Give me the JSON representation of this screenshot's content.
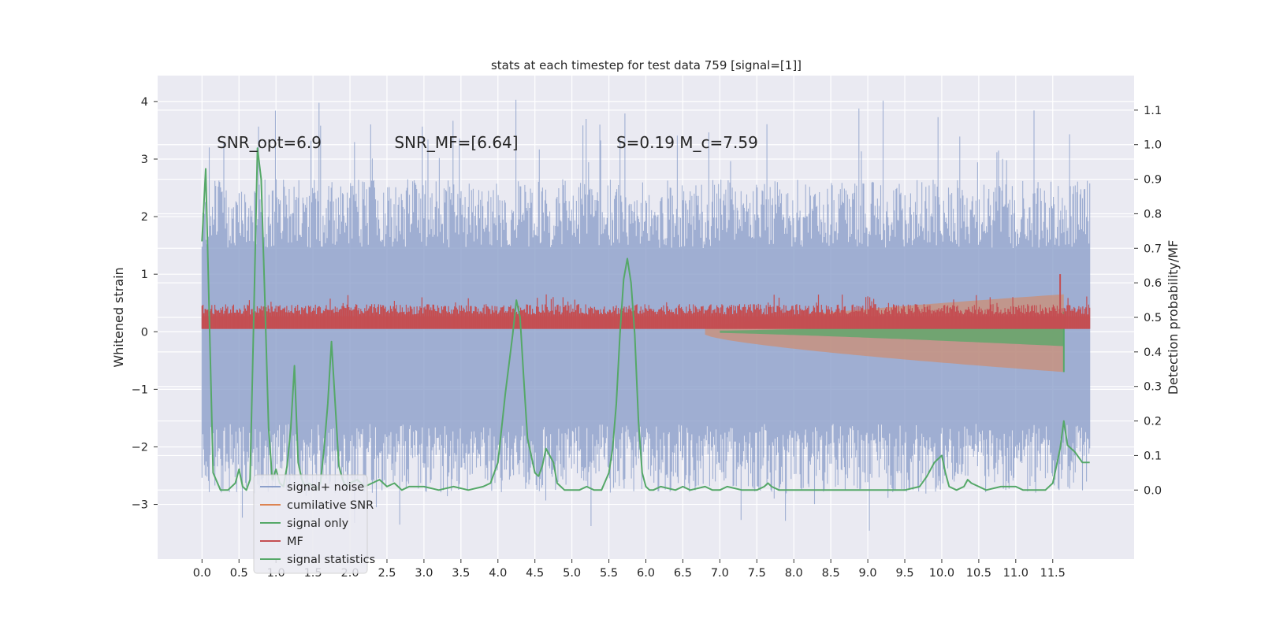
{
  "chart_data": {
    "type": "line",
    "title": "stats at each timestep for test data 759 [signal=[1]]",
    "xlabel": "",
    "ylabel": "Whitened strain",
    "y2label": "Detection probability/MF",
    "xlim": [
      -0.6,
      12.6
    ],
    "ylim": [
      -3.95,
      4.45
    ],
    "y2lim": [
      -0.2,
      1.2
    ],
    "x_ticks": [
      "0.0",
      "0.5",
      "1.0",
      "1.5",
      "2.0",
      "2.5",
      "3.0",
      "3.5",
      "4.0",
      "4.5",
      "5.0",
      "5.5",
      "6.0",
      "6.5",
      "7.0",
      "7.5",
      "8.0",
      "8.5",
      "9.0",
      "9.5",
      "10.0",
      "10.5",
      "11.0",
      "11.5"
    ],
    "y_ticks": [
      "4",
      "3",
      "2",
      "1",
      "0",
      "−1",
      "−2",
      "−3"
    ],
    "y2_ticks": [
      "1.1",
      "1.0",
      "0.9",
      "0.8",
      "0.7",
      "0.6",
      "0.5",
      "0.4",
      "0.3",
      "0.2",
      "0.1",
      "0.0"
    ],
    "grid": true,
    "legend_position": "lower-left",
    "annotations": [
      {
        "text": "SNR_opt=6.9",
        "x": 0.2,
        "y": 3.3
      },
      {
        "text": "SNR_MF=[6.64]",
        "x": 2.6,
        "y": 3.3
      },
      {
        "text": "S=0.19   M_c=7.59",
        "x": 5.6,
        "y": 3.3
      }
    ],
    "series": [
      {
        "name": "signal+ noise",
        "color": "#8da0cb",
        "axis": "left",
        "envelope": {
          "x_start": 0.0,
          "x_end": 12.0,
          "lo": -1.6,
          "hi": 1.45,
          "spike_hi": 4.1,
          "spike_lo": -3.5
        }
      },
      {
        "name": "cumilative SNR",
        "color": "#dd8452",
        "axis": "left",
        "shape": {
          "x_start": 6.8,
          "x_end": 11.65,
          "top_end": 0.65,
          "bottom_end": -0.7
        }
      },
      {
        "name": "signal only",
        "color": "#55a868",
        "axis": "left",
        "shape": {
          "x_start": 7.0,
          "x_end": 11.65,
          "top_end": 0.18,
          "bottom_end": -0.25
        }
      },
      {
        "name": "MF",
        "color": "#c44e52",
        "axis": "left",
        "band": {
          "x_start": 0.0,
          "x_end": 12.0,
          "lo": 0.05,
          "hi": 0.35,
          "peak_x": 11.6,
          "peak_y": 1.0
        }
      },
      {
        "name": "signal statistics",
        "color": "#55a868",
        "axis": "right",
        "x": [
          0.0,
          0.05,
          0.15,
          0.25,
          0.35,
          0.45,
          0.5,
          0.55,
          0.6,
          0.65,
          0.7,
          0.75,
          0.8,
          0.85,
          0.9,
          0.95,
          1.0,
          1.05,
          1.1,
          1.15,
          1.2,
          1.25,
          1.3,
          1.35,
          1.4,
          1.45,
          1.5,
          1.55,
          1.6,
          1.65,
          1.7,
          1.75,
          1.8,
          1.85,
          1.9,
          1.95,
          2.0,
          2.1,
          2.2,
          2.3,
          2.4,
          2.5,
          2.6,
          2.7,
          2.8,
          3.0,
          3.2,
          3.4,
          3.6,
          3.8,
          3.9,
          4.0,
          4.1,
          4.2,
          4.25,
          4.3,
          4.35,
          4.4,
          4.5,
          4.55,
          4.6,
          4.65,
          4.7,
          4.75,
          4.8,
          4.85,
          4.9,
          5.0,
          5.1,
          5.2,
          5.3,
          5.4,
          5.5,
          5.55,
          5.6,
          5.65,
          5.7,
          5.75,
          5.8,
          5.85,
          5.9,
          5.95,
          6.0,
          6.05,
          6.1,
          6.2,
          6.4,
          6.5,
          6.6,
          6.8,
          6.9,
          7.0,
          7.1,
          7.3,
          7.5,
          7.6,
          7.65,
          7.7,
          7.8,
          8.0,
          8.5,
          9.0,
          9.5,
          9.7,
          9.8,
          9.9,
          10.0,
          10.05,
          10.1,
          10.2,
          10.3,
          10.35,
          10.4,
          10.5,
          10.6,
          10.8,
          11.0,
          11.1,
          11.3,
          11.4,
          11.5,
          11.6,
          11.65,
          11.7,
          11.8,
          11.9,
          12.0
        ],
        "values": [
          0.72,
          0.93,
          0.05,
          0.0,
          0.0,
          0.02,
          0.06,
          0.01,
          0.0,
          0.03,
          0.5,
          0.99,
          0.9,
          0.55,
          0.18,
          0.03,
          0.06,
          0.02,
          0.01,
          0.07,
          0.18,
          0.36,
          0.08,
          0.03,
          0.01,
          0.02,
          0.01,
          0.0,
          0.02,
          0.12,
          0.25,
          0.43,
          0.25,
          0.07,
          0.03,
          0.01,
          0.02,
          0.03,
          0.01,
          0.02,
          0.03,
          0.01,
          0.02,
          0.0,
          0.01,
          0.01,
          0.0,
          0.01,
          0.0,
          0.01,
          0.02,
          0.08,
          0.28,
          0.45,
          0.55,
          0.5,
          0.32,
          0.15,
          0.05,
          0.04,
          0.07,
          0.12,
          0.1,
          0.08,
          0.02,
          0.01,
          0.0,
          0.0,
          0.0,
          0.01,
          0.0,
          0.0,
          0.05,
          0.12,
          0.25,
          0.45,
          0.61,
          0.67,
          0.6,
          0.45,
          0.2,
          0.05,
          0.01,
          0.0,
          0.0,
          0.01,
          0.0,
          0.01,
          0.0,
          0.01,
          0.0,
          0.0,
          0.01,
          0.0,
          0.0,
          0.01,
          0.02,
          0.01,
          0.0,
          0.0,
          0.0,
          0.0,
          0.0,
          0.01,
          0.04,
          0.08,
          0.1,
          0.05,
          0.01,
          0.0,
          0.01,
          0.03,
          0.02,
          0.01,
          0.0,
          0.01,
          0.01,
          0.0,
          0.0,
          0.0,
          0.02,
          0.12,
          0.2,
          0.13,
          0.11,
          0.08,
          0.08
        ]
      }
    ]
  }
}
